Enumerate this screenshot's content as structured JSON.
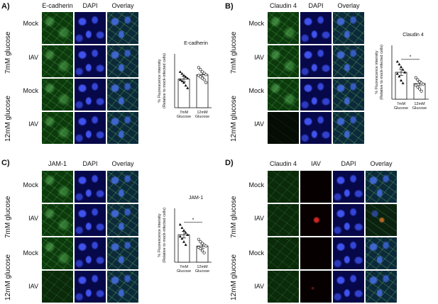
{
  "panels": {
    "A": {
      "letter": "A)",
      "columns": [
        "E-cadherin",
        "DAPI",
        "Overlay"
      ],
      "rows": [
        "Mock",
        "IAV",
        "Mock",
        "IAV"
      ],
      "groups": [
        "7mM glucose",
        "12mM glucose"
      ]
    },
    "B": {
      "letter": "B)",
      "columns": [
        "Claudin 4",
        "DAPI",
        "Overlay"
      ],
      "rows": [
        "Mock",
        "IAV",
        "Mock",
        "IAV"
      ],
      "groups": [
        "7mM glucose",
        "12mM glucose"
      ]
    },
    "C": {
      "letter": "C)",
      "columns": [
        "JAM-1",
        "DAPI",
        "Overlay"
      ],
      "rows": [
        "Mock",
        "IAV",
        "Mock",
        "IAV"
      ],
      "groups": [
        "7mM glucose",
        "12mM glucose"
      ]
    },
    "D": {
      "letter": "D)",
      "columns": [
        "Claudin 4",
        "IAV",
        "DAPI",
        "Overlay"
      ],
      "rows": [
        "Mock",
        "IAV",
        "Mock",
        "IAV"
      ],
      "groups": [
        "7mM glucose",
        "12mM glucose"
      ]
    }
  },
  "chart_data": [
    {
      "type": "bar",
      "panel": "A",
      "title": "E-cadherin",
      "ylabel": "% Fluorescence intensity",
      "ylabel2": "(Relative to mock-infected cells)",
      "categories": [
        "7mM Glucose",
        "12mM Glucose"
      ],
      "category_lines": [
        [
          "7mM",
          "Glucose"
        ],
        [
          "12mM",
          "Glucose"
        ]
      ],
      "values": [
        80,
        92
      ],
      "errors": [
        8,
        7
      ],
      "ylim": [
        0,
        150
      ],
      "points": [
        [
          100,
          95,
          90,
          86,
          82,
          78,
          75,
          70,
          62,
          55
        ],
        [
          112,
          106,
          100,
          96,
          92,
          90,
          86,
          82,
          78,
          70
        ]
      ],
      "markers": [
        "triangle",
        "circle"
      ],
      "significance": ""
    },
    {
      "type": "bar",
      "panel": "B",
      "title": "Claudin 4",
      "ylabel": "% Fluorescence intensity",
      "ylabel2": "(Relative to mock-infected cells)",
      "categories": [
        "7mM Glucose",
        "12mM Glucose"
      ],
      "category_lines": [
        [
          "7mM",
          "Glucose"
        ],
        [
          "12mM",
          "Glucose"
        ]
      ],
      "values": [
        100,
        58
      ],
      "errors": [
        12,
        8
      ],
      "ylim": [
        0,
        200
      ],
      "points": [
        [
          140,
          130,
          120,
          110,
          100,
          95,
          85,
          70,
          60
        ],
        [
          80,
          72,
          65,
          60,
          56,
          52,
          45,
          38,
          30
        ]
      ],
      "markers": [
        "triangle",
        "circle"
      ],
      "significance": "*"
    },
    {
      "type": "bar",
      "panel": "C",
      "title": "JAM-1",
      "ylabel": "% Fluorescence intensity",
      "ylabel2": "(Relative to mock-infected cells)",
      "categories": [
        "7mM Glucose",
        "12mM Glucose"
      ],
      "category_lines": [
        [
          "7mM",
          "Glucose"
        ],
        [
          "12mM",
          "Glucose"
        ]
      ],
      "values": [
        102,
        60
      ],
      "errors": [
        12,
        8
      ],
      "ylim": [
        0,
        200
      ],
      "points": [
        [
          140,
          128,
          118,
          110,
          102,
          96,
          88,
          76,
          65
        ],
        [
          85,
          76,
          70,
          64,
          60,
          55,
          50,
          42,
          35
        ]
      ],
      "markers": [
        "triangle",
        "circle"
      ],
      "significance": "*"
    }
  ]
}
